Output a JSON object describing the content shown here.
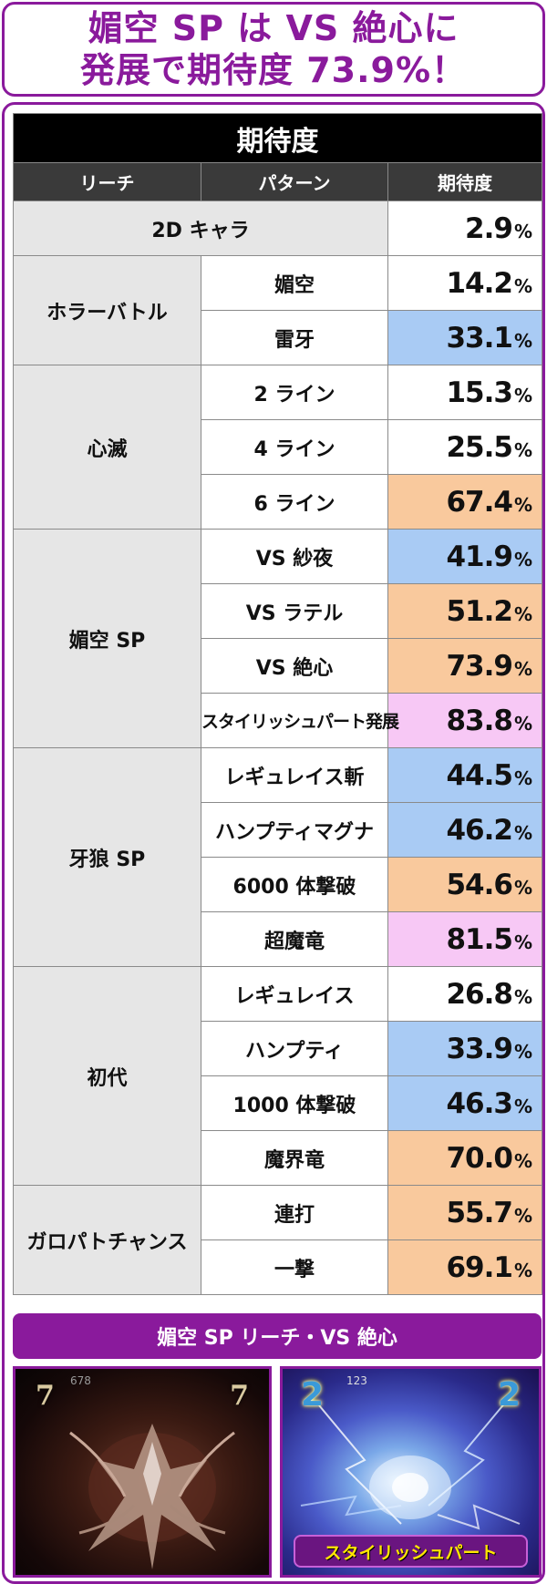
{
  "headline": {
    "line1": "媚空 SP は VS 絶心に",
    "line2": "発展で期待度 73.9%！"
  },
  "table": {
    "title": "期待度",
    "headers": [
      "リーチ",
      "パターン",
      "期待度"
    ],
    "single_row": {
      "label": "2D キャラ",
      "value": "2.9",
      "unit": "%"
    },
    "groups": [
      {
        "reach": "ホラーバトル",
        "rows": [
          {
            "pattern": "媚空",
            "value": "14.2",
            "unit": "%",
            "color": "#ffffff"
          },
          {
            "pattern": "雷牙",
            "value": "33.1",
            "unit": "%",
            "color": "#a9cbf4"
          }
        ]
      },
      {
        "reach": "心滅",
        "rows": [
          {
            "pattern": "2 ライン",
            "value": "15.3",
            "unit": "%",
            "color": "#ffffff"
          },
          {
            "pattern": "4 ライン",
            "value": "25.5",
            "unit": "%",
            "color": "#ffffff"
          },
          {
            "pattern": "6 ライン",
            "value": "67.4",
            "unit": "%",
            "color": "#f9c99d"
          }
        ]
      },
      {
        "reach": "媚空 SP",
        "rows": [
          {
            "pattern": "VS 紗夜",
            "value": "41.9",
            "unit": "%",
            "color": "#a9cbf4"
          },
          {
            "pattern": "VS ラテル",
            "value": "51.2",
            "unit": "%",
            "color": "#f9c99d"
          },
          {
            "pattern": "VS 絶心",
            "value": "73.9",
            "unit": "%",
            "color": "#f9c99d"
          },
          {
            "pattern": "スタイリッシュパート発展",
            "value": "83.8",
            "unit": "%",
            "color": "#f7c8f5"
          }
        ]
      },
      {
        "reach": "牙狼 SP",
        "rows": [
          {
            "pattern": "レギュレイス斬",
            "value": "44.5",
            "unit": "%",
            "color": "#a9cbf4"
          },
          {
            "pattern": "ハンプティマグナ",
            "value": "46.2",
            "unit": "%",
            "color": "#a9cbf4"
          },
          {
            "pattern": "6000 体撃破",
            "value": "54.6",
            "unit": "%",
            "color": "#f9c99d"
          },
          {
            "pattern": "超魔竜",
            "value": "81.5",
            "unit": "%",
            "color": "#f7c8f5"
          }
        ]
      },
      {
        "reach": "初代",
        "rows": [
          {
            "pattern": "レギュレイス",
            "value": "26.8",
            "unit": "%",
            "color": "#ffffff"
          },
          {
            "pattern": "ハンプティ",
            "value": "33.9",
            "unit": "%",
            "color": "#a9cbf4"
          },
          {
            "pattern": "1000 体撃破",
            "value": "46.3",
            "unit": "%",
            "color": "#a9cbf4"
          },
          {
            "pattern": "魔界竜",
            "value": "70.0",
            "unit": "%",
            "color": "#f9c99d"
          }
        ]
      },
      {
        "reach": "ガロパトチャンス",
        "rows": [
          {
            "pattern": "連打",
            "value": "55.7",
            "unit": "%",
            "color": "#f9c99d"
          },
          {
            "pattern": "一撃",
            "value": "69.1",
            "unit": "%",
            "color": "#f9c99d"
          }
        ]
      }
    ]
  },
  "section": {
    "title": "媚空 SP リーチ・VS 絶心"
  },
  "screenshots": {
    "left": {
      "reel_glyph": "7",
      "counter": "678"
    },
    "right": {
      "reel_glyph": "2",
      "counter": "123",
      "badge": "スタイリッシュパート"
    }
  }
}
